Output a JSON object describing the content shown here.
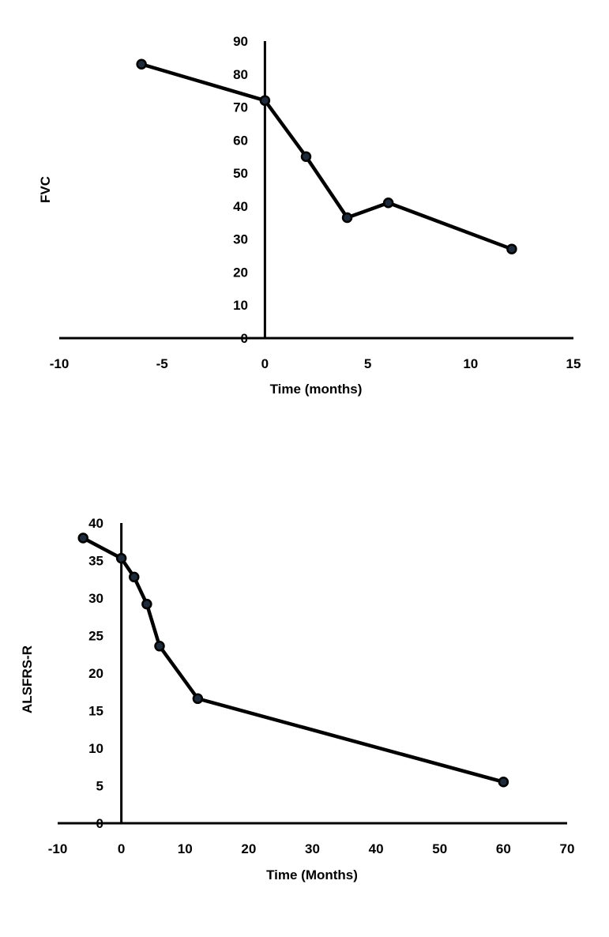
{
  "chart_data": [
    {
      "type": "line",
      "title": "",
      "xlabel": "Time (months)",
      "ylabel": "FVC",
      "xlim": [
        -10,
        15
      ],
      "ylim": [
        0,
        90
      ],
      "xticks": [
        -10,
        -5,
        0,
        5,
        10,
        15
      ],
      "yticks": [
        0,
        10,
        20,
        30,
        40,
        50,
        60,
        70,
        80,
        90
      ],
      "grid": false,
      "legend": "none",
      "series": [
        {
          "name": "FVC",
          "x": [
            -6,
            0,
            2,
            4,
            6,
            12
          ],
          "y": [
            83,
            72,
            55,
            36.5,
            41,
            27
          ]
        }
      ],
      "colors": {
        "line": "#000000",
        "marker_fill": "#1f2a3a",
        "marker_stroke": "#000000"
      }
    },
    {
      "type": "line",
      "title": "",
      "xlabel": "Time (Months)",
      "ylabel": "ALSFRS-R",
      "xlim": [
        -10,
        70
      ],
      "ylim": [
        0,
        40
      ],
      "xticks": [
        -10,
        0,
        10,
        20,
        30,
        40,
        50,
        60,
        70
      ],
      "yticks": [
        0,
        5,
        10,
        15,
        20,
        25,
        30,
        35,
        40
      ],
      "grid": false,
      "legend": "none",
      "series": [
        {
          "name": "ALSFRS-R",
          "x": [
            -6,
            0,
            2,
            4,
            6,
            12,
            60
          ],
          "y": [
            38,
            35.3,
            32.8,
            29.2,
            23.6,
            16.6,
            5.5
          ]
        }
      ],
      "colors": {
        "line": "#000000",
        "marker_fill": "#1f2a3a",
        "marker_stroke": "#000000"
      }
    }
  ]
}
